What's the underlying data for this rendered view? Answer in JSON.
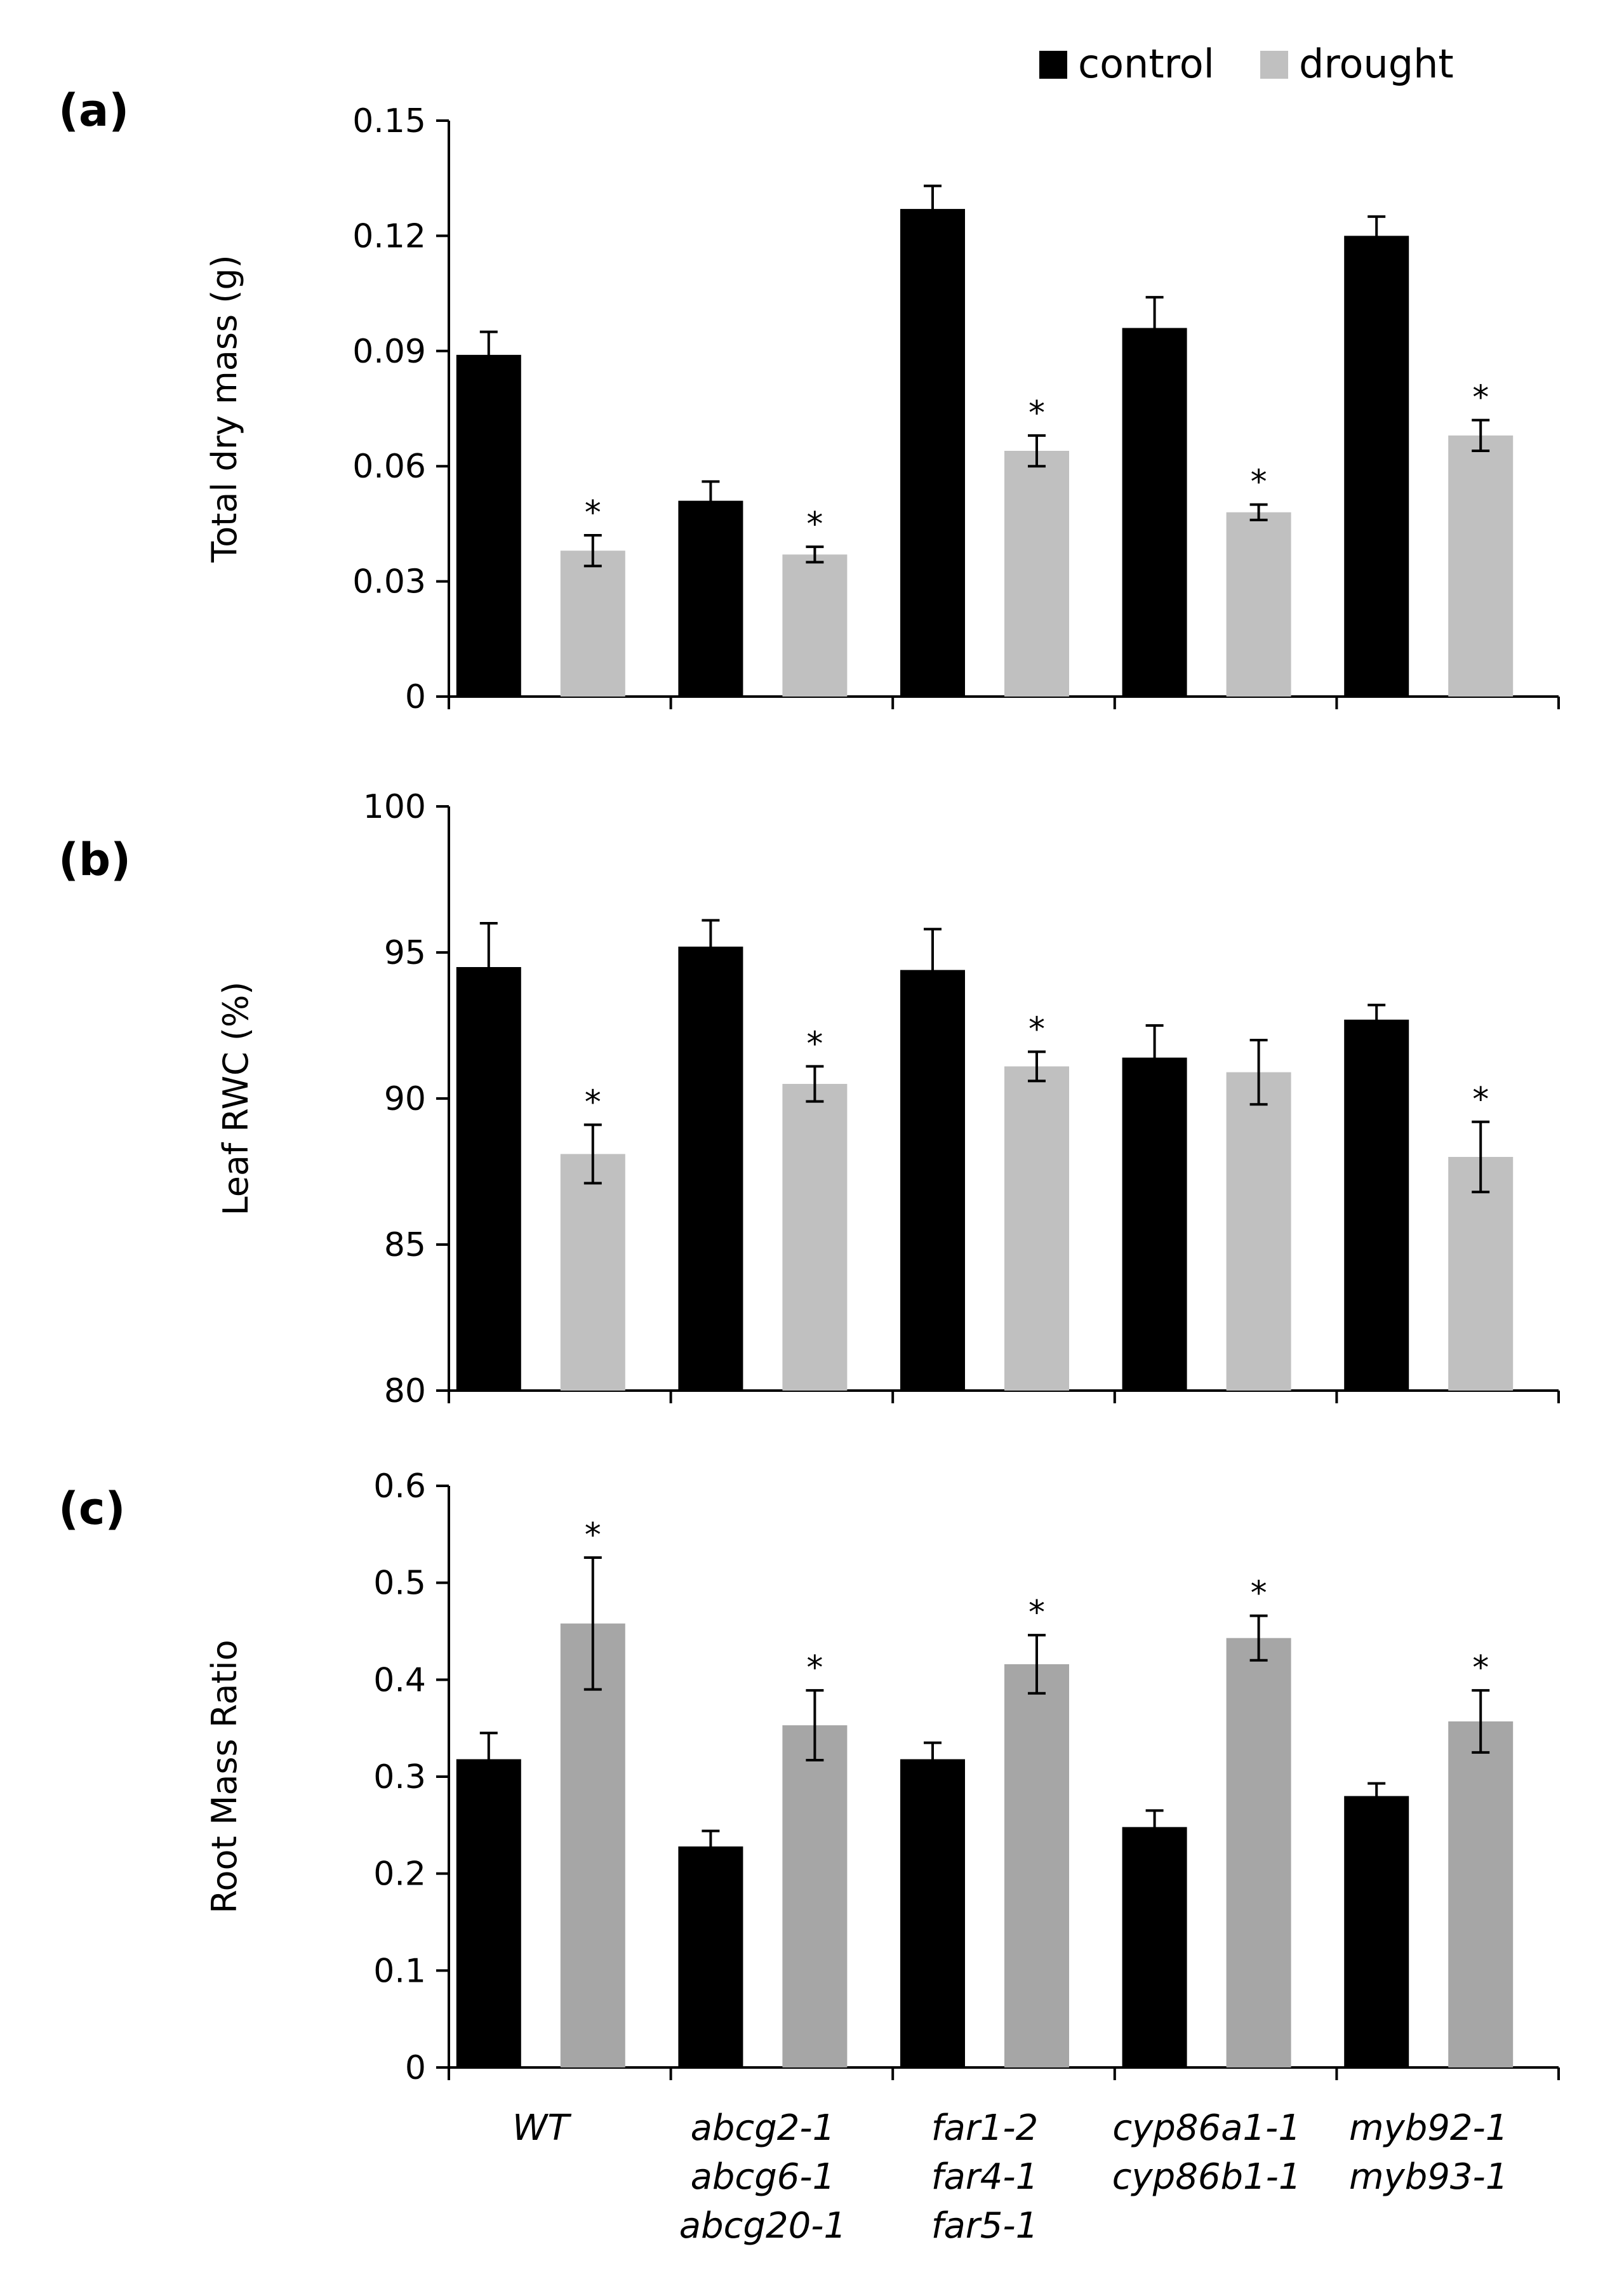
{
  "legend": {
    "control": "control",
    "drought": "drought"
  },
  "colors": {
    "control": "#000000",
    "drought_ab": "#c0c0c0",
    "drought_c": "#a6a6a6",
    "axis": "#000000"
  },
  "categories": [
    [
      "WT"
    ],
    [
      "abcg2-1",
      "abcg6-1",
      "abcg20-1"
    ],
    [
      "far1-2",
      "far4-1",
      "far5-1"
    ],
    [
      "cyp86a1-1",
      "cyp86b1-1"
    ],
    [
      "myb92-1",
      "myb93-1"
    ]
  ],
  "chart_data": [
    {
      "panel": "(a)",
      "type": "bar",
      "ylabel": "Total dry mass (g)",
      "ylim": [
        0,
        0.15
      ],
      "yticks": [
        "0",
        "0.03",
        "0.06",
        "0.09",
        "0.12",
        "0.15"
      ],
      "series": [
        {
          "name": "control",
          "values": [
            0.089,
            0.051,
            0.127,
            0.096,
            0.12
          ],
          "errors": [
            0.006,
            0.005,
            0.006,
            0.008,
            0.005
          ]
        },
        {
          "name": "drought",
          "values": [
            0.038,
            0.037,
            0.064,
            0.048,
            0.068
          ],
          "errors": [
            0.004,
            0.002,
            0.004,
            0.002,
            0.004
          ]
        }
      ],
      "significant": [
        true,
        true,
        true,
        true,
        true
      ]
    },
    {
      "panel": "(b)",
      "type": "bar",
      "ylabel": "Leaf  RWC  (%)",
      "ylim": [
        80,
        100
      ],
      "yticks": [
        "80",
        "85",
        "90",
        "95",
        "100"
      ],
      "series": [
        {
          "name": "control",
          "values": [
            94.5,
            95.2,
            94.4,
            91.4,
            92.7
          ],
          "errors": [
            1.5,
            0.9,
            1.4,
            1.1,
            0.5
          ]
        },
        {
          "name": "drought",
          "values": [
            88.1,
            90.5,
            91.1,
            90.9,
            88.0
          ],
          "errors": [
            1.0,
            0.6,
            0.5,
            1.1,
            1.2
          ]
        }
      ],
      "significant": [
        true,
        true,
        true,
        false,
        true
      ]
    },
    {
      "panel": "(c)",
      "type": "bar",
      "ylabel": "Root Mass Ratio",
      "ylim": [
        0,
        0.6
      ],
      "yticks": [
        "0",
        "0.1",
        "0.2",
        "0.3",
        "0.4",
        "0.5",
        "0.6"
      ],
      "series": [
        {
          "name": "control",
          "values": [
            0.318,
            0.228,
            0.318,
            0.248,
            0.28
          ],
          "errors": [
            0.027,
            0.016,
            0.017,
            0.017,
            0.013
          ]
        },
        {
          "name": "drought",
          "values": [
            0.458,
            0.353,
            0.416,
            0.443,
            0.357
          ],
          "errors": [
            0.068,
            0.036,
            0.03,
            0.023,
            0.032
          ]
        }
      ],
      "significant": [
        true,
        true,
        true,
        true,
        true
      ]
    }
  ]
}
